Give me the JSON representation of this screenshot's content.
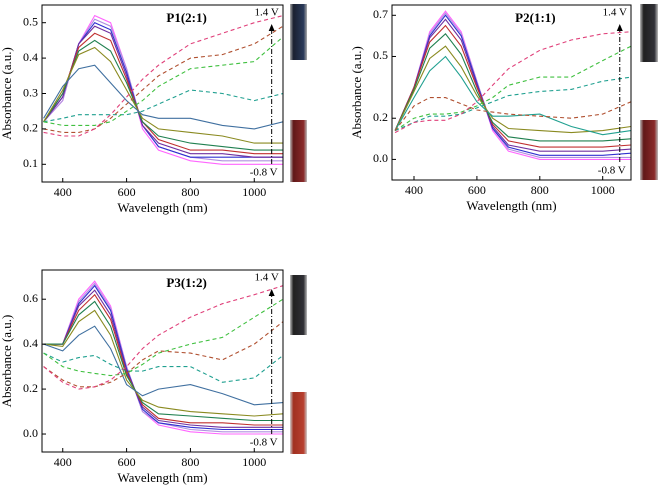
{
  "chart_data": [
    {
      "type": "line",
      "title": "P1(2:1)",
      "xlabel": "Wavelength (nm)",
      "ylabel": "Absorbance (a.u.)",
      "annotations": [
        "1.4 V",
        "-0.8 V"
      ],
      "x": [
        340,
        400,
        450,
        500,
        550,
        600,
        650,
        700,
        800,
        900,
        1000,
        1090
      ],
      "xlim": [
        335,
        1090
      ],
      "ylim": [
        0.05,
        0.55
      ],
      "xticks": [
        400,
        600,
        800,
        1000
      ],
      "yticks": [
        0.1,
        0.2,
        0.3,
        0.4,
        0.5
      ],
      "series": [
        {
          "color": "#ff66ff",
          "values": [
            0.22,
            0.28,
            0.44,
            0.52,
            0.5,
            0.37,
            0.2,
            0.14,
            0.11,
            0.1,
            0.1,
            0.1
          ]
        },
        {
          "color": "#b090e0",
          "values": [
            0.22,
            0.28,
            0.44,
            0.51,
            0.49,
            0.37,
            0.21,
            0.15,
            0.12,
            0.11,
            0.11,
            0.11
          ]
        },
        {
          "color": "#3030d0",
          "values": [
            0.22,
            0.29,
            0.44,
            0.5,
            0.48,
            0.36,
            0.21,
            0.15,
            0.12,
            0.12,
            0.12,
            0.12
          ]
        },
        {
          "color": "#7030a0",
          "values": [
            0.22,
            0.29,
            0.44,
            0.49,
            0.47,
            0.35,
            0.21,
            0.16,
            0.13,
            0.13,
            0.12,
            0.12
          ]
        },
        {
          "color": "#c03030",
          "values": [
            0.22,
            0.3,
            0.43,
            0.47,
            0.45,
            0.34,
            0.22,
            0.17,
            0.14,
            0.14,
            0.13,
            0.13
          ]
        },
        {
          "color": "#208050",
          "values": [
            0.22,
            0.3,
            0.42,
            0.45,
            0.42,
            0.33,
            0.22,
            0.18,
            0.16,
            0.15,
            0.14,
            0.14
          ]
        },
        {
          "color": "#8a8a20",
          "values": [
            0.22,
            0.31,
            0.41,
            0.43,
            0.39,
            0.31,
            0.23,
            0.2,
            0.19,
            0.18,
            0.16,
            0.16
          ]
        },
        {
          "color": "#4070a0",
          "values": [
            0.23,
            0.32,
            0.37,
            0.38,
            0.33,
            0.28,
            0.24,
            0.23,
            0.23,
            0.21,
            0.2,
            0.22
          ]
        },
        {
          "color": "#20a090",
          "dash": true,
          "values": [
            0.22,
            0.23,
            0.24,
            0.24,
            0.24,
            0.24,
            0.25,
            0.27,
            0.31,
            0.3,
            0.28,
            0.3
          ]
        },
        {
          "color": "#40c040",
          "dash": true,
          "values": [
            0.22,
            0.21,
            0.21,
            0.21,
            0.22,
            0.25,
            0.28,
            0.32,
            0.37,
            0.38,
            0.39,
            0.46
          ]
        },
        {
          "color": "#b05030",
          "dash": true,
          "values": [
            0.2,
            0.19,
            0.19,
            0.2,
            0.23,
            0.27,
            0.31,
            0.35,
            0.4,
            0.41,
            0.44,
            0.49
          ]
        },
        {
          "color": "#e0407a",
          "dash": true,
          "values": [
            0.19,
            0.18,
            0.18,
            0.2,
            0.24,
            0.29,
            0.34,
            0.38,
            0.44,
            0.47,
            0.5,
            0.52
          ]
        }
      ]
    },
    {
      "type": "line",
      "title": "P2(1:1)",
      "xlabel": "Wavelength (nm)",
      "ylabel": "Absorbance (a.u.)",
      "annotations": [
        "1.4 V",
        "-0.8 V"
      ],
      "x": [
        340,
        400,
        450,
        500,
        550,
        600,
        650,
        700,
        800,
        900,
        1000,
        1090
      ],
      "xlim": [
        330,
        1090
      ],
      "ylim": [
        -0.1,
        0.75
      ],
      "xticks": [
        400,
        600,
        800,
        1000
      ],
      "yticks": [
        {
          "value": 0,
          "label": "0.0"
        },
        0.2,
        0.5,
        0.7
      ],
      "series": [
        {
          "color": "#ff66ff",
          "values": [
            0.14,
            0.35,
            0.62,
            0.72,
            0.62,
            0.38,
            0.14,
            0.04,
            0.0,
            0.0,
            0.0,
            0.0
          ]
        },
        {
          "color": "#b090e0",
          "values": [
            0.14,
            0.35,
            0.61,
            0.71,
            0.61,
            0.38,
            0.15,
            0.05,
            0.01,
            0.01,
            0.01,
            0.01
          ]
        },
        {
          "color": "#3030d0",
          "values": [
            0.14,
            0.35,
            0.6,
            0.7,
            0.6,
            0.37,
            0.15,
            0.06,
            0.02,
            0.02,
            0.02,
            0.03
          ]
        },
        {
          "color": "#7030a0",
          "values": [
            0.14,
            0.35,
            0.59,
            0.68,
            0.58,
            0.36,
            0.16,
            0.07,
            0.04,
            0.04,
            0.04,
            0.05
          ]
        },
        {
          "color": "#c03030",
          "values": [
            0.14,
            0.35,
            0.57,
            0.65,
            0.55,
            0.35,
            0.17,
            0.09,
            0.06,
            0.06,
            0.06,
            0.07
          ]
        },
        {
          "color": "#208050",
          "values": [
            0.14,
            0.34,
            0.54,
            0.61,
            0.51,
            0.33,
            0.18,
            0.11,
            0.09,
            0.09,
            0.09,
            0.1
          ]
        },
        {
          "color": "#8a8a20",
          "values": [
            0.14,
            0.33,
            0.49,
            0.55,
            0.45,
            0.31,
            0.2,
            0.15,
            0.14,
            0.13,
            0.14,
            0.16
          ]
        },
        {
          "color": "#20a090",
          "values": [
            0.14,
            0.3,
            0.43,
            0.5,
            0.4,
            0.28,
            0.21,
            0.21,
            0.22,
            0.16,
            0.12,
            0.14
          ]
        },
        {
          "color": "#40c040",
          "dash": true,
          "values": [
            0.14,
            0.2,
            0.22,
            0.22,
            0.23,
            0.26,
            0.3,
            0.36,
            0.4,
            0.4,
            0.48,
            0.55
          ]
        },
        {
          "color": "#20a090",
          "dash": true,
          "values": [
            0.14,
            0.18,
            0.21,
            0.21,
            0.22,
            0.25,
            0.28,
            0.31,
            0.33,
            0.34,
            0.38,
            0.4
          ]
        },
        {
          "color": "#b05030",
          "dash": true,
          "values": [
            0.14,
            0.26,
            0.3,
            0.3,
            0.27,
            0.24,
            0.23,
            0.22,
            0.21,
            0.2,
            0.22,
            0.28
          ]
        },
        {
          "color": "#e0407a",
          "dash": true,
          "values": [
            0.13,
            0.18,
            0.19,
            0.19,
            0.22,
            0.28,
            0.36,
            0.44,
            0.53,
            0.58,
            0.61,
            0.62
          ]
        }
      ]
    },
    {
      "type": "line",
      "title": "P3(1:2)",
      "xlabel": "Wavelength (nm)",
      "ylabel": "Absorbance (a.u.)",
      "annotations": [
        "1.4 V",
        "-0.8 V"
      ],
      "x": [
        340,
        400,
        450,
        500,
        550,
        600,
        650,
        700,
        800,
        900,
        1000,
        1090
      ],
      "xlim": [
        335,
        1090
      ],
      "ylim": [
        -0.08,
        0.73
      ],
      "xticks": [
        400,
        600,
        800,
        1000
      ],
      "yticks": [
        {
          "value": 0,
          "label": "0.0"
        },
        0.2,
        0.4,
        0.6
      ],
      "series": [
        {
          "color": "#ff66ff",
          "values": [
            0.4,
            0.4,
            0.6,
            0.68,
            0.57,
            0.3,
            0.1,
            0.04,
            0.01,
            0.0,
            0.0,
            0.0
          ]
        },
        {
          "color": "#b090e0",
          "values": [
            0.4,
            0.4,
            0.59,
            0.67,
            0.56,
            0.3,
            0.1,
            0.05,
            0.02,
            0.01,
            0.01,
            0.01
          ]
        },
        {
          "color": "#3030d0",
          "values": [
            0.4,
            0.4,
            0.58,
            0.66,
            0.55,
            0.29,
            0.11,
            0.05,
            0.03,
            0.02,
            0.02,
            0.02
          ]
        },
        {
          "color": "#7030a0",
          "values": [
            0.4,
            0.4,
            0.57,
            0.64,
            0.53,
            0.28,
            0.12,
            0.06,
            0.04,
            0.03,
            0.03,
            0.03
          ]
        },
        {
          "color": "#c03030",
          "values": [
            0.4,
            0.4,
            0.55,
            0.62,
            0.51,
            0.27,
            0.13,
            0.07,
            0.05,
            0.05,
            0.04,
            0.04
          ]
        },
        {
          "color": "#208050",
          "values": [
            0.4,
            0.4,
            0.53,
            0.59,
            0.48,
            0.26,
            0.14,
            0.09,
            0.08,
            0.07,
            0.06,
            0.06
          ]
        },
        {
          "color": "#8a8a20",
          "values": [
            0.4,
            0.39,
            0.5,
            0.55,
            0.44,
            0.24,
            0.15,
            0.12,
            0.1,
            0.09,
            0.08,
            0.09
          ]
        },
        {
          "color": "#4070a0",
          "values": [
            0.4,
            0.37,
            0.44,
            0.48,
            0.38,
            0.22,
            0.17,
            0.2,
            0.22,
            0.18,
            0.13,
            0.14
          ]
        },
        {
          "color": "#20a090",
          "dash": true,
          "values": [
            0.36,
            0.32,
            0.34,
            0.35,
            0.31,
            0.28,
            0.28,
            0.3,
            0.3,
            0.23,
            0.25,
            0.35
          ]
        },
        {
          "color": "#40c040",
          "dash": true,
          "values": [
            0.36,
            0.3,
            0.28,
            0.27,
            0.26,
            0.27,
            0.31,
            0.36,
            0.4,
            0.43,
            0.52,
            0.6
          ]
        },
        {
          "color": "#b05030",
          "dash": true,
          "values": [
            0.3,
            0.24,
            0.21,
            0.21,
            0.23,
            0.27,
            0.33,
            0.37,
            0.36,
            0.33,
            0.4,
            0.5
          ]
        },
        {
          "color": "#e0407a",
          "dash": true,
          "values": [
            0.3,
            0.23,
            0.2,
            0.21,
            0.24,
            0.3,
            0.38,
            0.44,
            0.52,
            0.58,
            0.62,
            0.66
          ]
        }
      ]
    }
  ]
}
